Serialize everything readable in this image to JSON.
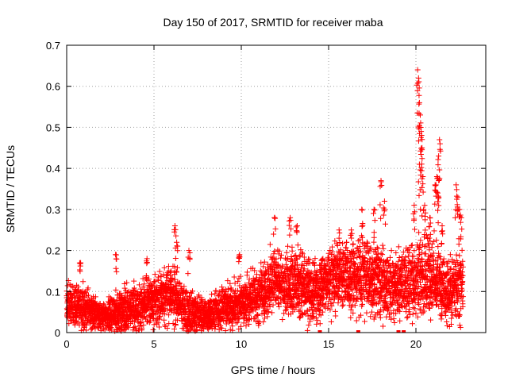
{
  "chart_data": {
    "type": "scatter",
    "title": "Day 150 of 2017, SRMTID for receiver maba",
    "xlabel": "GPS time / hours",
    "ylabel": "SRMTID / TECUs",
    "xlim": [
      0,
      24
    ],
    "ylim": [
      0,
      0.7
    ],
    "x_ticks": [
      0,
      5,
      10,
      15,
      20
    ],
    "x_tick_labels": [
      "0",
      "5",
      "10",
      "15",
      "20"
    ],
    "y_ticks": [
      0,
      0.1,
      0.2,
      0.3,
      0.4,
      0.5,
      0.6,
      0.7
    ],
    "y_tick_labels": [
      "0",
      "0.1",
      "0.2",
      "0.3",
      "0.4",
      "0.5",
      "0.6",
      "0.7"
    ],
    "grid": true,
    "marker": "+",
    "color": "#ff0000",
    "series": [
      {
        "name": "SRMTID",
        "envelope": {
          "hours": [
            0,
            1,
            2,
            3,
            4,
            5,
            6,
            7,
            8,
            9,
            10,
            11,
            12,
            13,
            14,
            15,
            16,
            17,
            18,
            19,
            20,
            21,
            22,
            22.7
          ],
          "typical": [
            0.07,
            0.06,
            0.04,
            0.05,
            0.06,
            0.08,
            0.09,
            0.05,
            0.04,
            0.06,
            0.07,
            0.09,
            0.13,
            0.12,
            0.1,
            0.13,
            0.14,
            0.13,
            0.12,
            0.11,
            0.13,
            0.14,
            0.1,
            0.12
          ],
          "spread": [
            0.05,
            0.05,
            0.03,
            0.05,
            0.05,
            0.05,
            0.07,
            0.05,
            0.04,
            0.05,
            0.05,
            0.06,
            0.07,
            0.07,
            0.07,
            0.07,
            0.08,
            0.08,
            0.08,
            0.07,
            0.09,
            0.08,
            0.07,
            0.07
          ]
        },
        "peaks": [
          {
            "x": 0.8,
            "y": 0.17
          },
          {
            "x": 2.8,
            "y": 0.19
          },
          {
            "x": 4.6,
            "y": 0.18
          },
          {
            "x": 6.2,
            "y": 0.26
          },
          {
            "x": 6.3,
            "y": 0.22
          },
          {
            "x": 7.0,
            "y": 0.2
          },
          {
            "x": 9.9,
            "y": 0.19
          },
          {
            "x": 11.9,
            "y": 0.28
          },
          {
            "x": 12.8,
            "y": 0.28
          },
          {
            "x": 13.2,
            "y": 0.26
          },
          {
            "x": 15.6,
            "y": 0.25
          },
          {
            "x": 16.3,
            "y": 0.25
          },
          {
            "x": 16.9,
            "y": 0.3
          },
          {
            "x": 17.6,
            "y": 0.3
          },
          {
            "x": 18.0,
            "y": 0.37
          },
          {
            "x": 18.2,
            "y": 0.32
          },
          {
            "x": 19.9,
            "y": 0.31
          },
          {
            "x": 20.1,
            "y": 0.64
          },
          {
            "x": 20.15,
            "y": 0.62
          },
          {
            "x": 20.2,
            "y": 0.56
          },
          {
            "x": 20.25,
            "y": 0.53
          },
          {
            "x": 20.3,
            "y": 0.49
          },
          {
            "x": 20.35,
            "y": 0.45
          },
          {
            "x": 20.4,
            "y": 0.38
          },
          {
            "x": 20.2,
            "y": 0.41
          },
          {
            "x": 20.5,
            "y": 0.31
          },
          {
            "x": 20.8,
            "y": 0.28
          },
          {
            "x": 21.1,
            "y": 0.36
          },
          {
            "x": 21.2,
            "y": 0.38
          },
          {
            "x": 21.3,
            "y": 0.43
          },
          {
            "x": 21.35,
            "y": 0.47
          },
          {
            "x": 21.25,
            "y": 0.34
          },
          {
            "x": 21.5,
            "y": 0.26
          },
          {
            "x": 22.3,
            "y": 0.36
          },
          {
            "x": 22.4,
            "y": 0.33
          },
          {
            "x": 22.5,
            "y": 0.3
          },
          {
            "x": 22.6,
            "y": 0.28
          }
        ],
        "zero_points": [
          14.5,
          16.7,
          19.0,
          19.3
        ]
      }
    ]
  }
}
